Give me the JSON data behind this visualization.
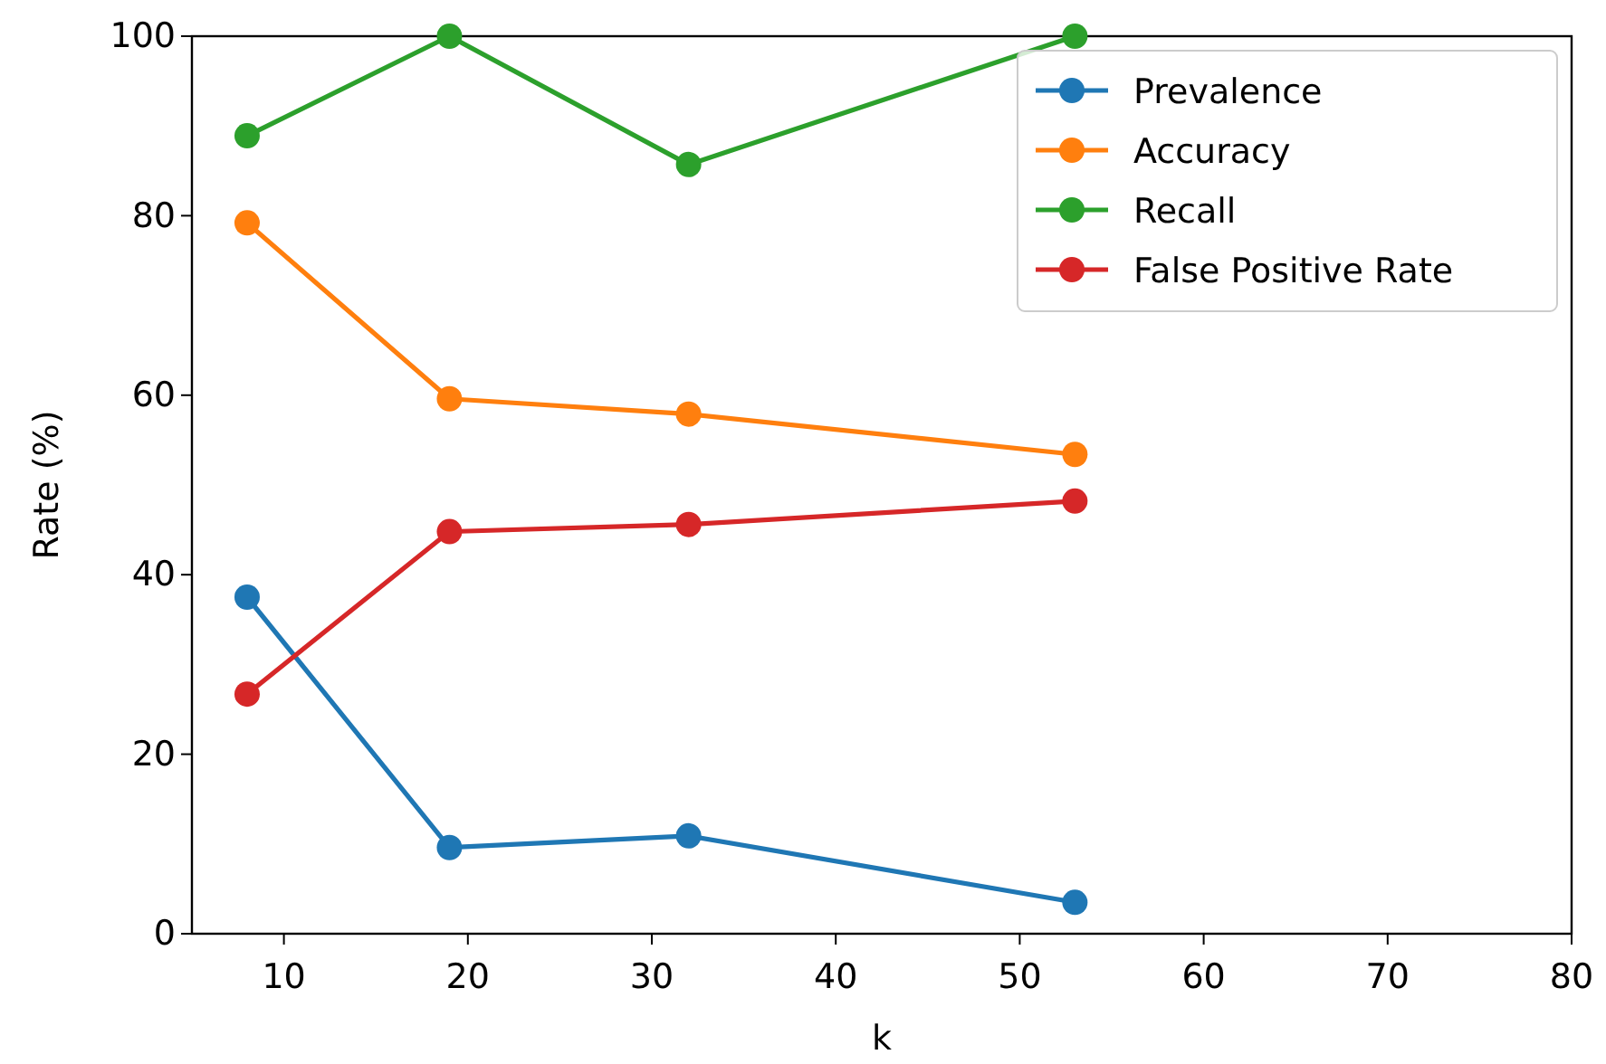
{
  "chart_data": {
    "type": "line",
    "xlabel": "k",
    "ylabel": "Rate (%)",
    "x": [
      8,
      19,
      32,
      53
    ],
    "series": [
      {
        "name": "Prevalence",
        "color": "#1f77b4",
        "values": [
          37.5,
          9.6,
          10.9,
          3.5
        ]
      },
      {
        "name": "Accuracy",
        "color": "#ff7f0e",
        "values": [
          79.2,
          59.6,
          57.9,
          53.4
        ]
      },
      {
        "name": "Recall",
        "color": "#2ca02c",
        "values": [
          88.9,
          100,
          85.7,
          100
        ]
      },
      {
        "name": "False Positive Rate",
        "color": "#d62728",
        "values": [
          26.7,
          44.8,
          45.6,
          48.2
        ]
      }
    ],
    "xlim": [
      5,
      80
    ],
    "xticks": [
      10,
      20,
      30,
      40,
      50,
      60,
      70,
      80
    ],
    "ylim": [
      0,
      100
    ],
    "yticks": [
      0,
      20,
      40,
      60,
      80,
      100
    ],
    "legend": "top right",
    "marker": "circle",
    "line_style": "solid",
    "grid": false
  }
}
